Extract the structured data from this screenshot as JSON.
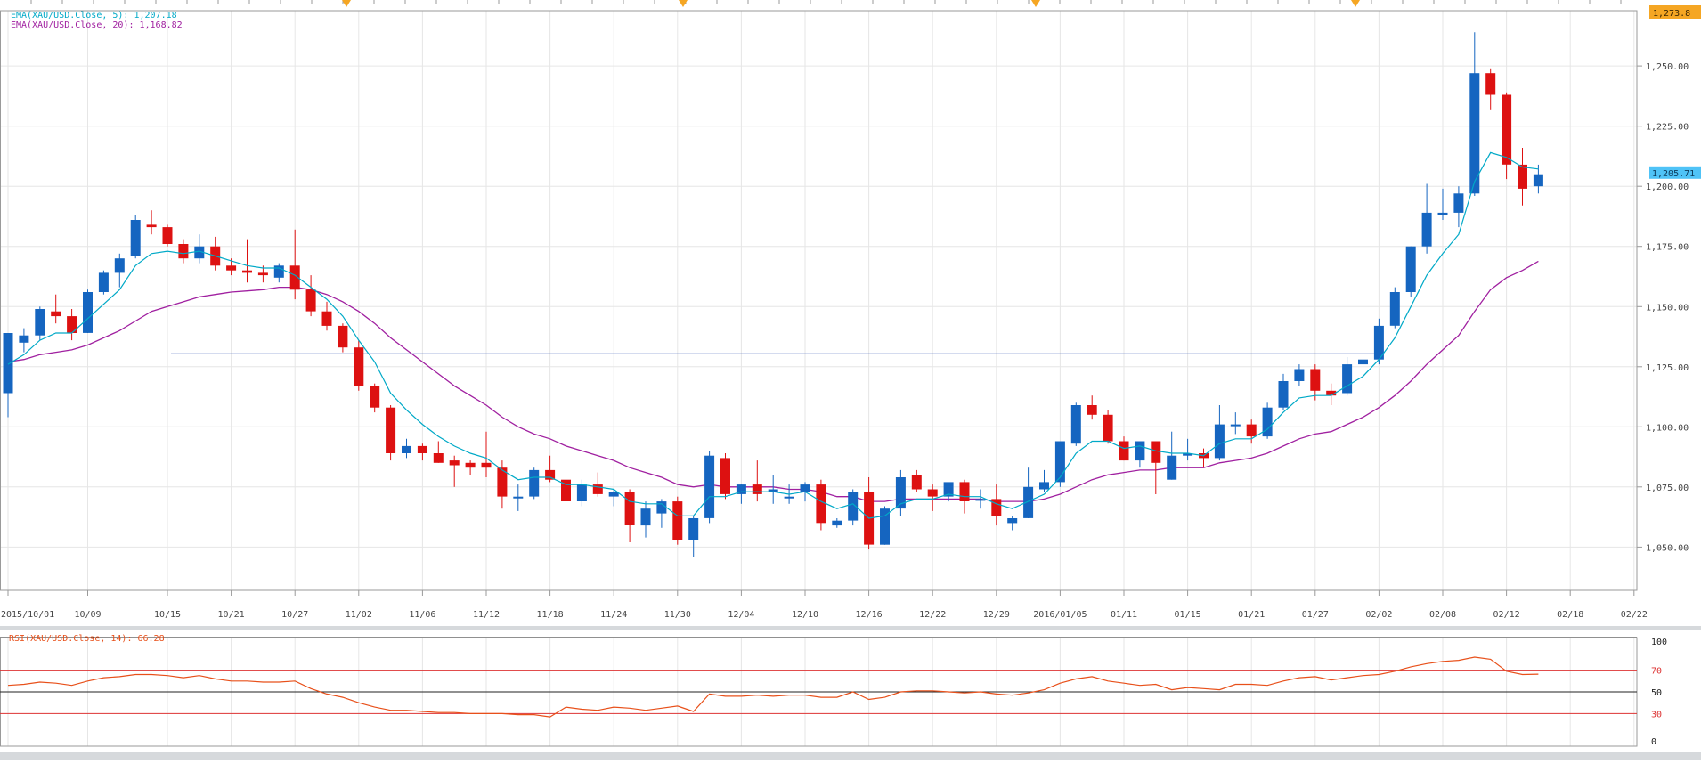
{
  "chart_data": {
    "type": "candlestick",
    "symbol": "XAU/USD",
    "price_axis": {
      "ticks": [
        "1,050.00",
        "1,075.00",
        "1,100.00",
        "1,125.00",
        "1,150.00",
        "1,175.00",
        "1,200.00",
        "1,225.00",
        "1,250.00"
      ],
      "tick_values": [
        1050,
        1075,
        1100,
        1125,
        1150,
        1175,
        1200,
        1225,
        1250
      ],
      "ylim": [
        1032,
        1273
      ],
      "current_price_label": "1,205.71",
      "current_price": 1205.71,
      "top_label": "1,273.8",
      "top_value": 1273.8
    },
    "time_axis": {
      "labels": [
        "2015/10/01",
        "10/09",
        "10/15",
        "10/21",
        "10/27",
        "11/02",
        "11/06",
        "11/12",
        "11/18",
        "11/24",
        "11/30",
        "12/04",
        "12/10",
        "12/16",
        "12/22",
        "12/29",
        "2016/01/05",
        "01/11",
        "01/15",
        "01/21",
        "01/27",
        "02/02",
        "02/08",
        "02/12",
        "02/18",
        "02/22"
      ],
      "label_bar_index": [
        0,
        5,
        10,
        14,
        18,
        22,
        26,
        30,
        34,
        38,
        42,
        46,
        50,
        54,
        58,
        62,
        66,
        70,
        74,
        78,
        82,
        86,
        90,
        94,
        98,
        102
      ]
    },
    "horizontal_line": {
      "value": 1130.4
    },
    "indicators": [
      {
        "label": "EMA(XAU/USD.Close, 5): 1,207.18",
        "color": "#00a9c7",
        "value": 1207.18
      },
      {
        "label": "EMA(XAU/USD.Close, 20): 1,168.82",
        "color": "#a020a0",
        "value": 1168.82
      }
    ],
    "series": [
      {
        "name": "OHLC",
        "candles": [
          [
            1114,
            1139,
            1104,
            1139
          ],
          [
            1135,
            1141,
            1131,
            1138
          ],
          [
            1138,
            1150,
            1136,
            1149
          ],
          [
            1148,
            1155,
            1143,
            1146
          ],
          [
            1146,
            1149,
            1136,
            1139
          ],
          [
            1139,
            1157,
            1139,
            1156
          ],
          [
            1156,
            1165,
            1155,
            1164
          ],
          [
            1164,
            1172,
            1158,
            1170
          ],
          [
            1171,
            1188,
            1170,
            1186
          ],
          [
            1184,
            1190,
            1180,
            1183
          ],
          [
            1183,
            1184,
            1175,
            1176
          ],
          [
            1176,
            1178,
            1168,
            1170
          ],
          [
            1170,
            1180,
            1168,
            1175
          ],
          [
            1175,
            1179,
            1165,
            1167
          ],
          [
            1167,
            1170,
            1163,
            1165
          ],
          [
            1165,
            1178,
            1160,
            1164
          ],
          [
            1164,
            1167,
            1160,
            1163
          ],
          [
            1162,
            1168,
            1160,
            1167
          ],
          [
            1167,
            1182,
            1153,
            1157
          ],
          [
            1157,
            1163,
            1146,
            1148
          ],
          [
            1148,
            1152,
            1140,
            1142
          ],
          [
            1142,
            1143,
            1131,
            1133
          ],
          [
            1133,
            1136,
            1115,
            1117
          ],
          [
            1117,
            1118,
            1106,
            1108
          ],
          [
            1108,
            1109,
            1086,
            1089
          ],
          [
            1089,
            1095,
            1087,
            1092
          ],
          [
            1092,
            1093,
            1086,
            1089
          ],
          [
            1089,
            1094,
            1085,
            1085
          ],
          [
            1086,
            1088,
            1075,
            1084
          ],
          [
            1085,
            1086,
            1080,
            1083
          ],
          [
            1085,
            1098,
            1079,
            1083
          ],
          [
            1083,
            1086,
            1066,
            1071
          ],
          [
            1071,
            1076,
            1065,
            1071
          ],
          [
            1071,
            1083,
            1070,
            1082
          ],
          [
            1082,
            1088,
            1077,
            1078
          ],
          [
            1078,
            1082,
            1067,
            1069
          ],
          [
            1069,
            1078,
            1067,
            1076
          ],
          [
            1076,
            1081,
            1071,
            1072
          ],
          [
            1071,
            1074,
            1067,
            1073
          ],
          [
            1073,
            1074,
            1052,
            1059
          ],
          [
            1059,
            1069,
            1054,
            1066
          ],
          [
            1064,
            1070,
            1058,
            1069
          ],
          [
            1069,
            1071,
            1051,
            1053
          ],
          [
            1053,
            1063,
            1046,
            1062
          ],
          [
            1062,
            1090,
            1060,
            1088
          ],
          [
            1087,
            1089,
            1070,
            1072
          ],
          [
            1072,
            1076,
            1068,
            1076
          ],
          [
            1076,
            1086,
            1069,
            1072
          ],
          [
            1073,
            1080,
            1068,
            1074
          ],
          [
            1071,
            1076,
            1068,
            1071
          ],
          [
            1073,
            1077,
            1069,
            1076
          ],
          [
            1076,
            1078,
            1057,
            1060
          ],
          [
            1059,
            1062,
            1058,
            1061
          ],
          [
            1061,
            1074,
            1059,
            1073
          ],
          [
            1073,
            1079,
            1049,
            1051
          ],
          [
            1051,
            1067,
            1051,
            1066
          ],
          [
            1066,
            1082,
            1063,
            1079
          ],
          [
            1080,
            1082,
            1073,
            1074
          ],
          [
            1074,
            1076,
            1065,
            1071
          ],
          [
            1071,
            1076,
            1069,
            1077
          ],
          [
            1077,
            1078,
            1064,
            1069
          ],
          [
            1070,
            1074,
            1066,
            1070
          ],
          [
            1070,
            1076,
            1059,
            1063
          ],
          [
            1060,
            1063,
            1057,
            1062
          ],
          [
            1062,
            1083,
            1062,
            1075
          ],
          [
            1074,
            1082,
            1073,
            1077
          ],
          [
            1077,
            1094,
            1075,
            1094
          ],
          [
            1093,
            1110,
            1092,
            1109
          ],
          [
            1109,
            1113,
            1103,
            1105
          ],
          [
            1105,
            1107,
            1093,
            1094
          ],
          [
            1094,
            1096,
            1086,
            1086
          ],
          [
            1086,
            1094,
            1083,
            1094
          ],
          [
            1094,
            1094,
            1072,
            1085
          ],
          [
            1078,
            1098,
            1078,
            1088
          ],
          [
            1088,
            1095,
            1086,
            1089
          ],
          [
            1089,
            1091,
            1083,
            1087
          ],
          [
            1087,
            1109,
            1086,
            1101
          ],
          [
            1101,
            1106,
            1097,
            1101
          ],
          [
            1101,
            1103,
            1093,
            1096
          ],
          [
            1096,
            1110,
            1095,
            1108
          ],
          [
            1108,
            1122,
            1107,
            1119
          ],
          [
            1119,
            1126,
            1117,
            1124
          ],
          [
            1124,
            1126,
            1111,
            1115
          ],
          [
            1115,
            1118,
            1109,
            1113
          ],
          [
            1114,
            1129,
            1113,
            1126
          ],
          [
            1126,
            1130,
            1124,
            1128
          ],
          [
            1128,
            1145,
            1126,
            1142
          ],
          [
            1142,
            1158,
            1141,
            1156
          ],
          [
            1156,
            1175,
            1154,
            1175
          ],
          [
            1175,
            1201,
            1172,
            1189
          ],
          [
            1188,
            1199,
            1186,
            1189
          ],
          [
            1189,
            1200,
            1183,
            1197
          ],
          [
            1197,
            1264,
            1196,
            1247
          ],
          [
            1247,
            1249,
            1232,
            1238
          ],
          [
            1238,
            1239,
            1203,
            1209
          ],
          [
            1209,
            1216,
            1192,
            1199
          ],
          [
            1200,
            1209,
            1197,
            1205
          ]
        ]
      },
      {
        "name": "EMA(XAU/USD.Close, 5)",
        "values": [
          1126,
          1130,
          1136,
          1139,
          1139,
          1145,
          1151,
          1157,
          1167,
          1172,
          1173,
          1172,
          1173,
          1171,
          1169,
          1167,
          1166,
          1166,
          1163,
          1158,
          1153,
          1146,
          1136,
          1127,
          1114,
          1107,
          1101,
          1096,
          1092,
          1089,
          1087,
          1082,
          1078,
          1079,
          1079,
          1076,
          1076,
          1075,
          1074,
          1069,
          1068,
          1068,
          1063,
          1063,
          1071,
          1071,
          1073,
          1073,
          1073,
          1072,
          1073,
          1069,
          1066,
          1068,
          1062,
          1063,
          1068,
          1070,
          1070,
          1072,
          1071,
          1071,
          1068,
          1066,
          1069,
          1072,
          1079,
          1089,
          1094,
          1094,
          1091,
          1092,
          1090,
          1089,
          1089,
          1088,
          1093,
          1095,
          1095,
          1099,
          1106,
          1112,
          1113,
          1113,
          1117,
          1121,
          1128,
          1137,
          1150,
          1163,
          1172,
          1180,
          1202,
          1214,
          1212,
          1208,
          1207.18
        ]
      },
      {
        "name": "EMA(XAU/USD.Close, 20)",
        "values": [
          1127,
          1128,
          1130,
          1131,
          1132,
          1134,
          1137,
          1140,
          1144,
          1148,
          1150,
          1152,
          1154,
          1155,
          1156,
          1156.5,
          1157,
          1158,
          1158,
          1157,
          1155,
          1152,
          1148,
          1143,
          1137,
          1132,
          1127,
          1122,
          1117,
          1113,
          1109,
          1104,
          1100,
          1097,
          1095,
          1092,
          1090,
          1088,
          1086,
          1083,
          1081,
          1079,
          1076,
          1075,
          1076,
          1075,
          1075,
          1075,
          1075,
          1074,
          1074,
          1073,
          1071,
          1071,
          1069,
          1069,
          1070,
          1070,
          1070,
          1070,
          1070,
          1070,
          1069,
          1069,
          1069,
          1070,
          1072,
          1075,
          1078,
          1080,
          1081,
          1082,
          1082,
          1083,
          1083,
          1083,
          1085,
          1086,
          1087,
          1089,
          1092,
          1095,
          1097,
          1098,
          1101,
          1104,
          1108,
          1113,
          1119,
          1126,
          1132,
          1138,
          1148,
          1157,
          1162,
          1165,
          1168.82
        ]
      }
    ],
    "rsi": {
      "label": "RSI(XAU/USD.Close, 14): 66.28",
      "value": 66.28,
      "levels": {
        "lower": 30,
        "mid": 50,
        "upper": 70
      },
      "axis_labels": [
        "100",
        "70",
        "50",
        "30",
        "0"
      ],
      "ylim": [
        0,
        100
      ],
      "values": [
        56,
        57,
        59,
        58,
        56,
        60,
        63,
        64,
        66,
        66,
        65,
        63,
        65,
        62,
        60,
        60,
        59,
        59,
        60,
        53,
        48,
        45,
        40,
        36,
        33,
        33,
        32,
        31,
        31,
        30,
        30,
        30,
        29,
        29,
        27,
        36,
        34,
        33,
        36,
        35,
        33,
        35,
        37,
        32,
        48,
        46,
        46,
        47,
        46,
        47,
        47,
        45,
        45,
        50,
        43,
        45,
        50,
        51,
        51,
        50,
        49,
        50,
        48,
        47,
        49,
        52,
        58,
        62,
        64,
        60,
        58,
        56,
        57,
        52,
        54,
        53,
        52,
        57,
        57,
        56,
        60,
        63,
        64,
        61,
        63,
        65,
        66,
        69,
        73,
        76,
        78,
        79,
        82,
        80,
        69,
        66,
        66.28
      ]
    },
    "colors": {
      "up": "#1565c0",
      "down": "#dd1111",
      "ema5": "#00a9c7",
      "ema20": "#a020a0",
      "rsi_line": "#e8501a",
      "rsi_level": "#dd3333",
      "hline": "#5570c0",
      "current_price_bg": "#4fc3f7",
      "top_label_bg": "#f5a623",
      "marker": "#f5a623",
      "grid": "#e6e6e6",
      "axis_text": "#444444"
    }
  }
}
